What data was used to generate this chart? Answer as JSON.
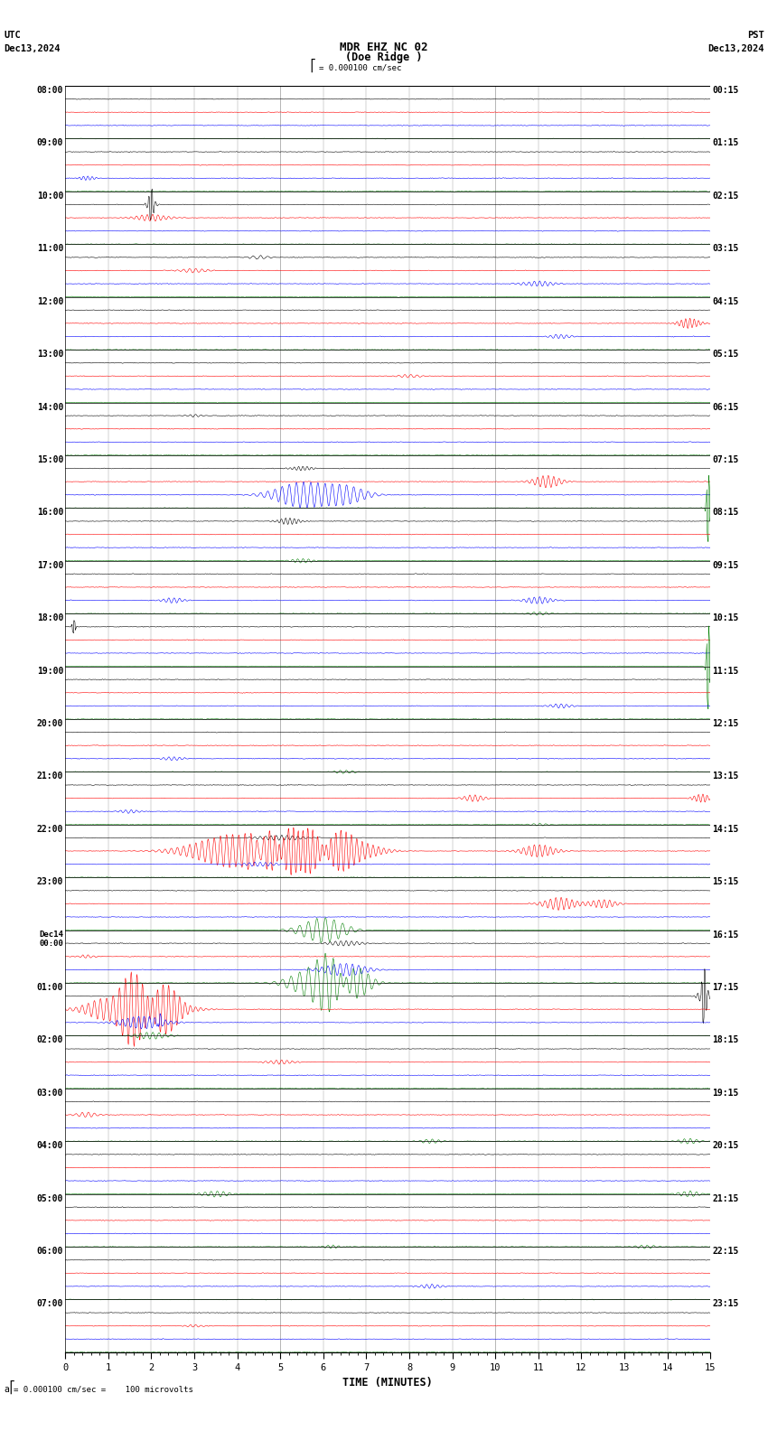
{
  "title_line1": "MDR EHZ NC 02",
  "title_line2": "(Doe Ridge )",
  "scale_text": "= 0.000100 cm/sec",
  "bottom_scale_text": "= 0.000100 cm/sec =    100 microvolts",
  "utc_label": "UTC",
  "utc_date": "Dec13,2024",
  "pst_label": "PST",
  "pst_date": "Dec13,2024",
  "xlabel": "TIME (MINUTES)",
  "x_min": 0,
  "x_max": 15,
  "left_times": [
    "08:00",
    "09:00",
    "10:00",
    "11:00",
    "12:00",
    "13:00",
    "14:00",
    "15:00",
    "16:00",
    "17:00",
    "18:00",
    "19:00",
    "20:00",
    "21:00",
    "22:00",
    "23:00",
    "00:00",
    "01:00",
    "02:00",
    "03:00",
    "04:00",
    "05:00",
    "06:00",
    "07:00"
  ],
  "left_times_special": [
    16
  ],
  "right_times": [
    "00:15",
    "01:15",
    "02:15",
    "03:15",
    "04:15",
    "05:15",
    "06:15",
    "07:15",
    "08:15",
    "09:15",
    "10:15",
    "11:15",
    "12:15",
    "13:15",
    "14:15",
    "15:15",
    "16:15",
    "17:15",
    "18:15",
    "19:15",
    "20:15",
    "21:15",
    "22:15",
    "23:15"
  ],
  "trace_colors": [
    "black",
    "red",
    "blue",
    "green"
  ],
  "bg_color": "white",
  "grid_color": "#999999",
  "noise_amplitude": 0.06,
  "seed": 12345,
  "fig_width": 8.5,
  "fig_height": 15.84,
  "dpi": 100,
  "num_groups": 24,
  "traces_per_group": 4,
  "num_points": 1800
}
